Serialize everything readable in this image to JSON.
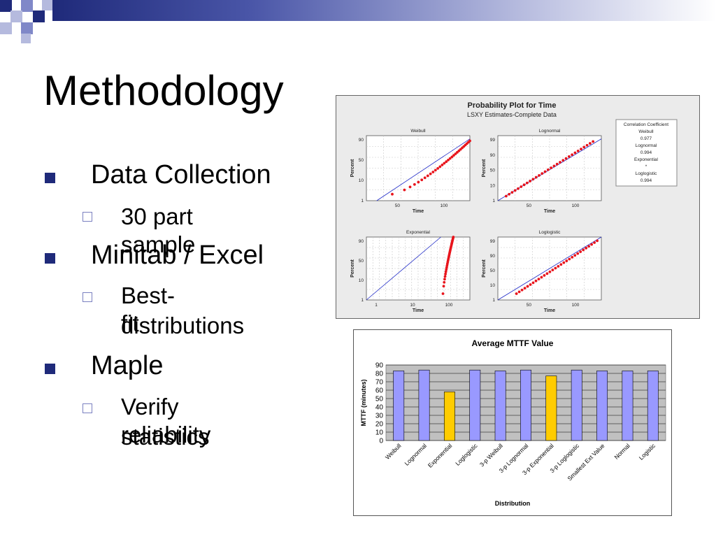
{
  "slide": {
    "title": "Methodology",
    "bullets": [
      {
        "text": "Data Collection",
        "sub": [
          "30 part sample"
        ]
      },
      {
        "text": "Minitab / Excel",
        "sub": [
          "Best-fit distributions"
        ]
      },
      {
        "text": "Maple",
        "sub": [
          "Verify reliability statistics"
        ]
      }
    ],
    "sub_lines": {
      "best_fit_1": "Best-fit",
      "best_fit_2": "distributions",
      "verify_1": "Verify reliability",
      "verify_2": "statistics"
    }
  },
  "prob_plot": {
    "title": "Probability Plot for Time",
    "subtitle": "LSXY Estimates-Complete Data",
    "panels": [
      {
        "name": "Weibull",
        "yticks": [
          "90",
          "50",
          "10",
          "1"
        ],
        "xticks": [
          "50",
          "100"
        ]
      },
      {
        "name": "Lognormal",
        "yticks": [
          "99",
          "90",
          "50",
          "10",
          "1"
        ],
        "xticks": [
          "50",
          "100"
        ]
      },
      {
        "name": "Exponential",
        "yticks": [
          "90",
          "50",
          "10",
          "1"
        ],
        "xticks": [
          "1",
          "10",
          "100"
        ]
      },
      {
        "name": "Loglogistic",
        "yticks": [
          "99",
          "90",
          "50",
          "10",
          "1"
        ],
        "xticks": [
          "50",
          "100"
        ]
      }
    ],
    "xlabel": "Time",
    "ylabel": "Percent",
    "legend": {
      "heading": "Correlation Coefficient",
      "lines": [
        "Weibull",
        "0.977",
        "Lognormal",
        "0.994",
        "Exponential",
        "*",
        "Loglogistic",
        "0.994"
      ]
    },
    "point_color": "#e8141c",
    "line_color": "#1f2ac8"
  },
  "chart_data": {
    "type": "bar",
    "title": "Average MTTF Value",
    "xlabel": "Distribution",
    "ylabel": "MTTF (minutes)",
    "ylim": [
      0,
      90
    ],
    "yticks": [
      0,
      10,
      20,
      30,
      40,
      50,
      60,
      70,
      80,
      90
    ],
    "categories": [
      "Weibull",
      "Lognormal",
      "Exponential",
      "Loglogistic",
      "3-p Weibull",
      "3-p Lognormal",
      "3-p Exponential",
      "3-p Loglogistic",
      "Smallest Ext Value",
      "Normal",
      "Logistic"
    ],
    "values": [
      83,
      84,
      58,
      84,
      83,
      84,
      77,
      84,
      83,
      83,
      83
    ],
    "highlight": [
      "Exponential",
      "3-p Exponential"
    ],
    "colors": {
      "bar": "#9999ff",
      "highlight": "#ffcc00",
      "plot_bg": "#c0c0c0"
    },
    "grid": true,
    "legend": "none"
  }
}
